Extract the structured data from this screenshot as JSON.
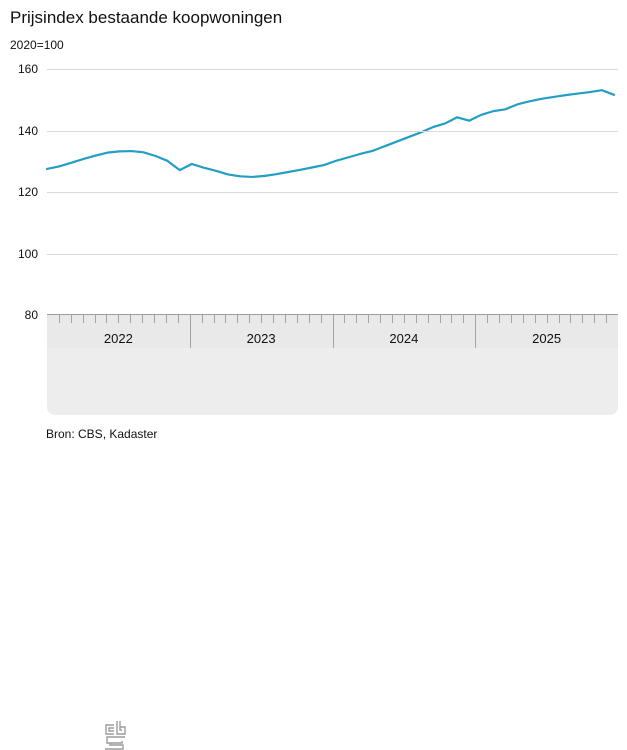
{
  "header": {
    "title": "Prijsindex bestaande koopwoningen",
    "subtitle": "2020=100"
  },
  "footer": {
    "source": "Bron: CBS, Kadaster",
    "logo": "cbs-logo"
  },
  "colors": {
    "line": "#239ec4",
    "gridline": "#d9d9d9",
    "axis_band": "#e9e9e9",
    "logo_panel": "#ededed",
    "tick": "#a3a3a3",
    "text": "#111111"
  },
  "chart_data": {
    "type": "line",
    "title": "Prijsindex bestaande koopwoningen",
    "subtitle": "2020=100",
    "unit": "index (2020=100)",
    "x_type": "monthly",
    "x_start": "2022-01",
    "x_end": "2025-12",
    "year_labels": [
      "2022",
      "2023",
      "2024",
      "2025"
    ],
    "months_per_year": 12,
    "ylim": [
      80,
      160
    ],
    "yticks": [
      80,
      100,
      120,
      140,
      160
    ],
    "grid": "horizontal",
    "legend": "none",
    "series": [
      {
        "name": "Prijsindex bestaande koopwoningen",
        "values": [
          127.6,
          128.4,
          129.6,
          130.8,
          131.9,
          132.9,
          133.3,
          133.4,
          133.0,
          131.8,
          130.2,
          127.2,
          129.2,
          128.0,
          127.0,
          125.8,
          125.2,
          125.0,
          125.3,
          125.9,
          126.6,
          127.3,
          128.1,
          128.9,
          130.3,
          131.4,
          132.5,
          133.5,
          135.0,
          136.5,
          138.0,
          139.5,
          141.2,
          142.4,
          144.4,
          143.3,
          145.2,
          146.4,
          147.0,
          148.6,
          149.6,
          150.4,
          151.0,
          151.6,
          152.1,
          152.6,
          153.2,
          151.7
        ]
      }
    ]
  }
}
